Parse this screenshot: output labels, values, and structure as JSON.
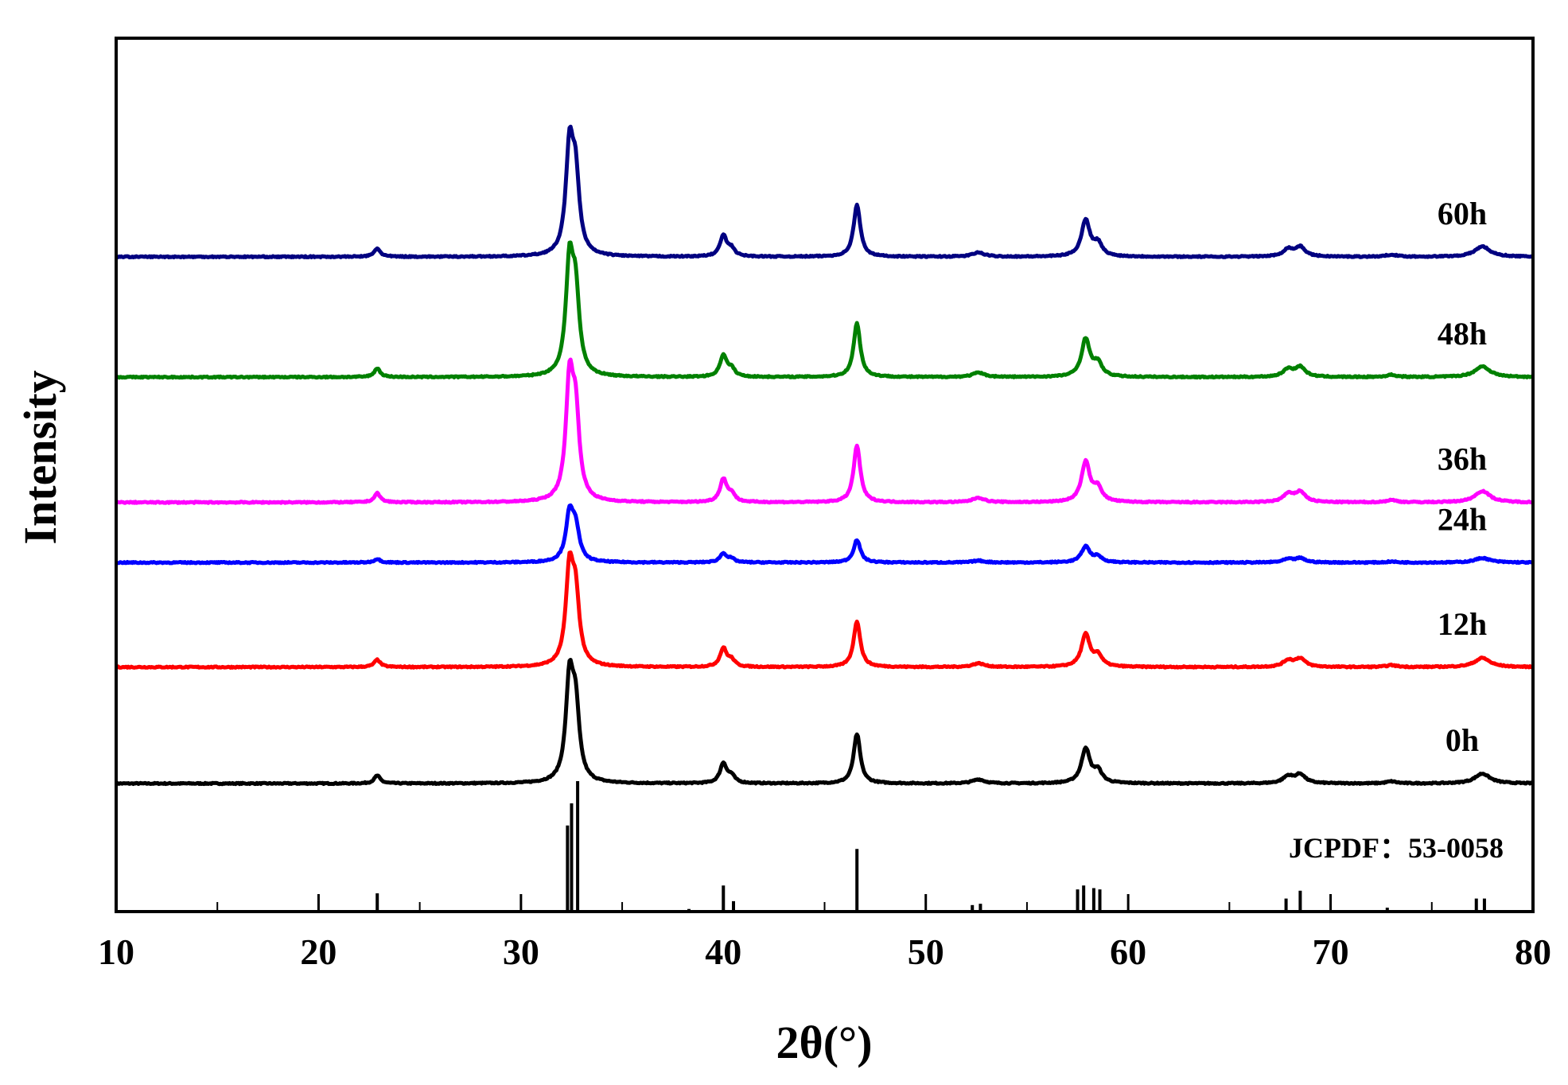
{
  "chart_data": {
    "type": "line",
    "xlabel": "2θ(°)",
    "ylabel": "Intensity",
    "xlim": [
      10,
      80
    ],
    "xticks": [
      "10",
      "20",
      "30",
      "40",
      "50",
      "60",
      "70",
      "80"
    ],
    "peaks": [
      {
        "pos": 22.9,
        "h": 0.08,
        "w": 0.18
      },
      {
        "pos": 32.4,
        "h": 1.0,
        "w": 0.22
      },
      {
        "pos": 32.7,
        "h": 0.7,
        "w": 0.22
      },
      {
        "pos": 40.0,
        "h": 0.2,
        "w": 0.2
      },
      {
        "pos": 40.4,
        "h": 0.07,
        "w": 0.2
      },
      {
        "pos": 46.6,
        "h": 0.5,
        "w": 0.2
      },
      {
        "pos": 52.6,
        "h": 0.04,
        "w": 0.35
      },
      {
        "pos": 57.9,
        "h": 0.35,
        "w": 0.25
      },
      {
        "pos": 58.5,
        "h": 0.12,
        "w": 0.25
      },
      {
        "pos": 67.9,
        "h": 0.07,
        "w": 0.3
      },
      {
        "pos": 68.5,
        "h": 0.09,
        "w": 0.3
      },
      {
        "pos": 73.0,
        "h": 0.02,
        "w": 0.3
      },
      {
        "pos": 77.5,
        "h": 0.1,
        "w": 0.45
      }
    ],
    "series": [
      {
        "name": "0h",
        "color": "#000000",
        "baseline": 0.0,
        "scale": 1.0
      },
      {
        "name": "12h",
        "color": "#ff0000",
        "baseline": 1.18,
        "scale": 0.93
      },
      {
        "name": "24h",
        "color": "#0000ff",
        "baseline": 2.24,
        "scale": 0.46
      },
      {
        "name": "36h",
        "color": "#ff00ff",
        "baseline": 2.85,
        "scale": 1.15
      },
      {
        "name": "48h",
        "color": "#008000",
        "baseline": 4.12,
        "scale": 1.09
      },
      {
        "name": "60h",
        "color": "#000080",
        "baseline": 5.34,
        "scale": 1.05
      }
    ],
    "reference": {
      "label": "JCPDF：53-0058",
      "lines": [
        {
          "x": 22.9,
          "v": 0.14
        },
        {
          "x": 32.3,
          "v": 0.66
        },
        {
          "x": 32.5,
          "v": 0.83
        },
        {
          "x": 32.8,
          "v": 1.0
        },
        {
          "x": 38.3,
          "v": 0.02
        },
        {
          "x": 40.0,
          "v": 0.2
        },
        {
          "x": 40.5,
          "v": 0.08
        },
        {
          "x": 46.6,
          "v": 0.48
        },
        {
          "x": 52.3,
          "v": 0.05
        },
        {
          "x": 52.7,
          "v": 0.06
        },
        {
          "x": 57.5,
          "v": 0.17
        },
        {
          "x": 57.8,
          "v": 0.2
        },
        {
          "x": 58.3,
          "v": 0.18
        },
        {
          "x": 58.6,
          "v": 0.17
        },
        {
          "x": 67.8,
          "v": 0.1
        },
        {
          "x": 68.5,
          "v": 0.16
        },
        {
          "x": 72.8,
          "v": 0.03
        },
        {
          "x": 77.2,
          "v": 0.1
        },
        {
          "x": 77.6,
          "v": 0.1
        }
      ]
    },
    "grid": false,
    "legend": "labels-at-right-above-each-trace"
  }
}
